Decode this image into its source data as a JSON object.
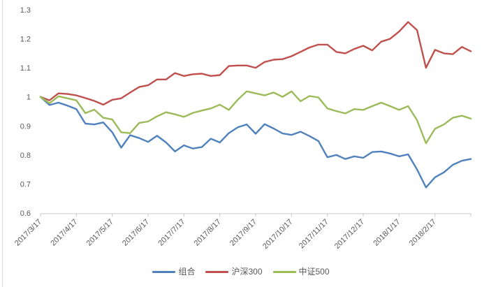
{
  "chart_data": {
    "type": "line",
    "title": "",
    "xlabel": "",
    "ylabel": "",
    "ylim": [
      0.6,
      1.3
    ],
    "grid": false,
    "legend_position": "bottom",
    "x_point_count": 49,
    "x_frequency": "weekly",
    "x_tick_labels": [
      "2017/3/17",
      "2017/4/17",
      "2017/5/17",
      "2017/6/17",
      "2017/7/17",
      "2017/8/17",
      "2017/9/17",
      "2017/10/17",
      "2017/11/17",
      "2017/12/17",
      "2018/1/17",
      "2018/2/17"
    ],
    "x_tick_step": 4,
    "y_ticks": [
      0.6,
      0.7,
      0.8,
      0.9,
      1,
      1.1,
      1.2,
      1.3
    ],
    "y_tick_labels": [
      "0.6",
      "0.7",
      "0.8",
      "0.9",
      "1",
      "1.1",
      "1.2",
      "1.3"
    ],
    "axis_color": "#c9c9c9",
    "text_color": "#595959",
    "series": [
      {
        "name": "组合",
        "color": "#4F81BD",
        "values": [
          1.0,
          0.972,
          0.98,
          0.97,
          0.958,
          0.908,
          0.905,
          0.912,
          0.878,
          0.825,
          0.868,
          0.858,
          0.845,
          0.866,
          0.843,
          0.812,
          0.833,
          0.822,
          0.827,
          0.856,
          0.843,
          0.875,
          0.895,
          0.905,
          0.873,
          0.906,
          0.891,
          0.874,
          0.869,
          0.88,
          0.865,
          0.848,
          0.792,
          0.8,
          0.786,
          0.795,
          0.79,
          0.81,
          0.812,
          0.805,
          0.795,
          0.802,
          0.75,
          0.688,
          0.723,
          0.74,
          0.766,
          0.78,
          0.786
        ]
      },
      {
        "name": "沪深300",
        "color": "#C0504D",
        "values": [
          1.0,
          0.988,
          1.012,
          1.01,
          1.005,
          0.996,
          0.986,
          0.973,
          0.99,
          0.995,
          1.015,
          1.034,
          1.04,
          1.06,
          1.06,
          1.082,
          1.072,
          1.078,
          1.08,
          1.072,
          1.075,
          1.106,
          1.108,
          1.108,
          1.1,
          1.12,
          1.128,
          1.13,
          1.14,
          1.155,
          1.17,
          1.18,
          1.18,
          1.155,
          1.15,
          1.165,
          1.176,
          1.16,
          1.19,
          1.2,
          1.225,
          1.258,
          1.23,
          1.1,
          1.162,
          1.15,
          1.147,
          1.172,
          1.157
        ]
      },
      {
        "name": "中证500",
        "color": "#9BBB59",
        "values": [
          1.0,
          0.978,
          1.002,
          0.995,
          0.988,
          0.944,
          0.956,
          0.928,
          0.922,
          0.878,
          0.875,
          0.91,
          0.915,
          0.933,
          0.947,
          0.94,
          0.931,
          0.945,
          0.953,
          0.96,
          0.973,
          0.955,
          0.99,
          1.019,
          1.012,
          1.005,
          1.015,
          1.0,
          1.019,
          0.985,
          1.003,
          0.998,
          0.96,
          0.951,
          0.943,
          0.958,
          0.955,
          0.968,
          0.98,
          0.968,
          0.955,
          0.968,
          0.92,
          0.84,
          0.89,
          0.905,
          0.928,
          0.935,
          0.925
        ]
      }
    ]
  }
}
